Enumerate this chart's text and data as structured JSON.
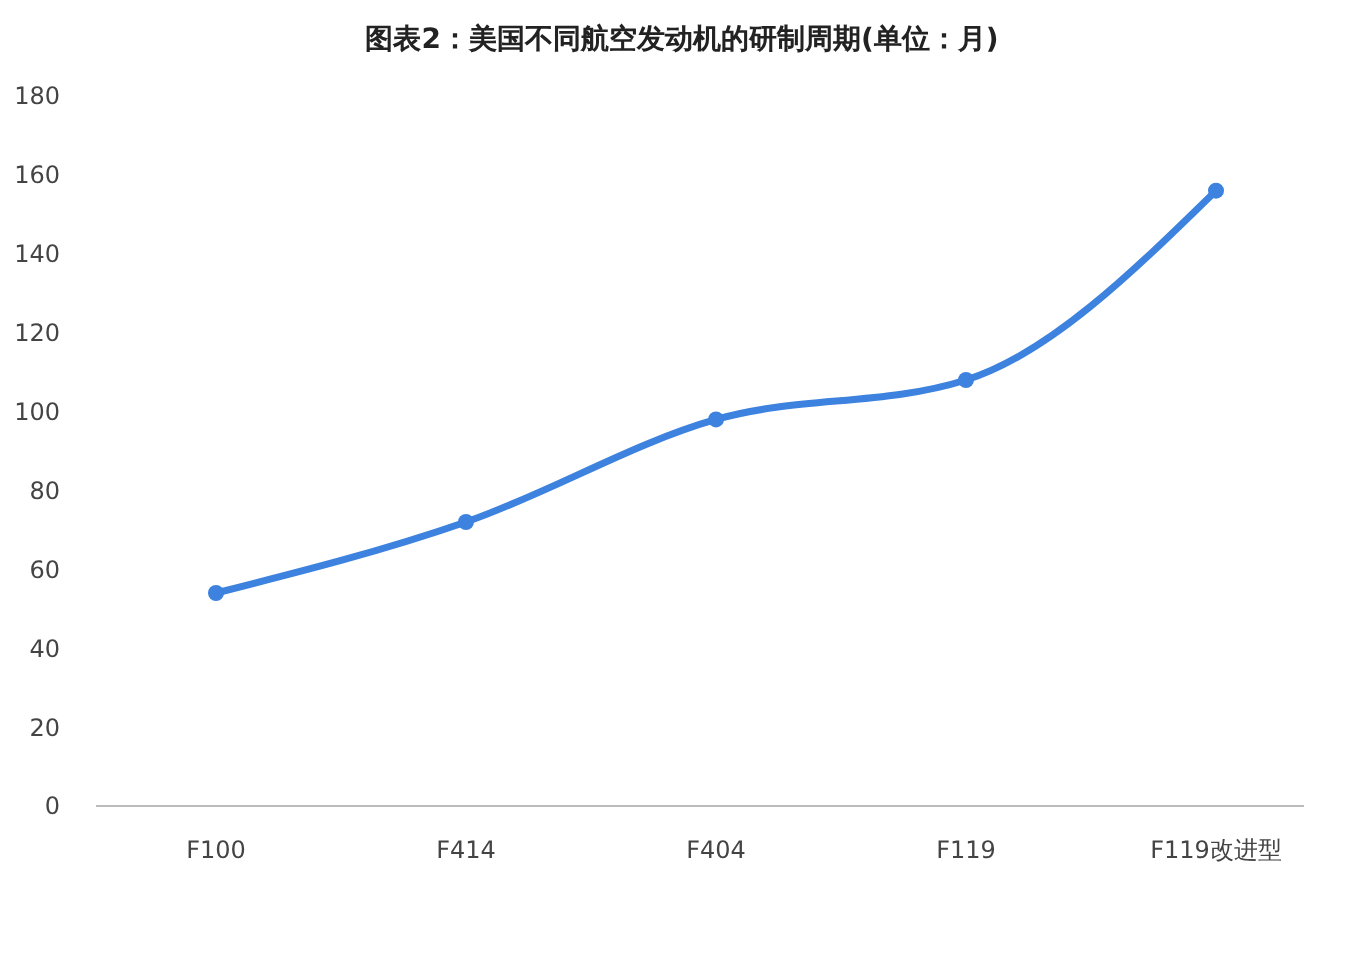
{
  "chart_data": {
    "type": "line",
    "title": "图表2：美国不同航空发动机的研制周期(单位：月)",
    "categories": [
      "F100",
      "F414",
      "F404",
      "F119",
      "F119改进型"
    ],
    "series": [
      {
        "color": "#3c82de",
        "values": [
          54,
          72,
          98,
          108,
          156
        ]
      }
    ],
    "ylim": [
      0,
      180
    ],
    "yticks": [
      0,
      20,
      40,
      60,
      80,
      100,
      120,
      140,
      160,
      180
    ],
    "grid": false,
    "marker": "circle",
    "line_style": "solid"
  }
}
